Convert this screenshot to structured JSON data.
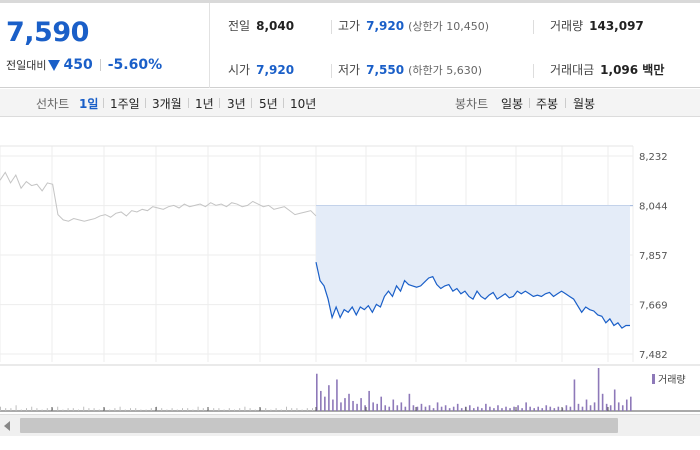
{
  "summary": {
    "price": "7,590",
    "diff_label": "전일대비",
    "diff_value": "450",
    "diff_pct": "-5.60%"
  },
  "stats": {
    "prev_label": "전일",
    "prev_value": "8,040",
    "high_label": "고가",
    "high_value": "7,920",
    "upper_limit": "(상한가 10,450)",
    "volume_label": "거래량",
    "volume_value": "143,097",
    "open_label": "시가",
    "open_value": "7,920",
    "low_label": "저가",
    "low_value": "7,550",
    "lower_limit": "(하한가 5,630)",
    "amount_label": "거래대금",
    "amount_value": "1,096 백만"
  },
  "tabs": {
    "line_label": "선차트",
    "line_items": [
      "1일",
      "1주일",
      "3개월",
      "1년",
      "3년",
      "5년",
      "10년"
    ],
    "active": "1일",
    "candle_label": "봉차트",
    "candle_items": [
      "일봉",
      "주봉",
      "월봉"
    ]
  },
  "colors": {
    "accent": "#1a5fc8",
    "fill": "#e4ecf8",
    "prev_line": "#c4c4c4",
    "volume": "#8e79b9"
  },
  "chart_data": {
    "type": "line",
    "ylim": [
      7482,
      8232
    ],
    "yticks": [
      8232,
      8044,
      7857,
      7669,
      7482
    ],
    "ytick_labels": [
      "8,232",
      "8,044",
      "7,857",
      "7,669",
      "7,482"
    ],
    "baseline": 8044,
    "series": [
      {
        "role": "previous-day",
        "x": [
          0,
          3,
          6,
          9,
          12,
          15,
          18,
          21,
          24,
          27,
          30,
          33,
          36,
          39,
          42,
          45,
          48,
          51,
          54,
          57,
          60,
          63,
          66,
          69,
          72,
          75,
          78,
          81,
          84,
          87,
          90,
          93,
          96,
          99,
          102,
          105,
          108,
          111,
          114,
          117,
          120,
          123,
          126,
          129,
          132,
          135,
          138,
          141,
          144,
          147,
          150,
          153,
          156,
          159,
          162,
          165,
          168,
          171,
          174,
          177,
          180
        ],
        "values": [
          8140,
          8170,
          8130,
          8160,
          8110,
          8135,
          8120,
          8125,
          8100,
          8130,
          8125,
          8010,
          7990,
          7985,
          7995,
          7990,
          7985,
          7990,
          7995,
          8005,
          8010,
          8000,
          8015,
          8020,
          8005,
          8025,
          8020,
          8030,
          8025,
          8040,
          8035,
          8030,
          8040,
          8045,
          8035,
          8050,
          8040,
          8045,
          8050,
          8040,
          8055,
          8045,
          8050,
          8040,
          8055,
          8050,
          8040,
          8045,
          8060,
          8050,
          8040,
          8045,
          8030,
          8035,
          8040,
          8025,
          8010,
          8015,
          8020,
          8025,
          8005
        ]
      },
      {
        "role": "today",
        "x": [
          0,
          2,
          4,
          6,
          8,
          10,
          12,
          14,
          16,
          18,
          20,
          22,
          24,
          26,
          28,
          30,
          32,
          34,
          36,
          38,
          40,
          42,
          44,
          46,
          48,
          50,
          52,
          54,
          56,
          58,
          60,
          62,
          64,
          66,
          68,
          70,
          72,
          74,
          76,
          78,
          80,
          82,
          84,
          86,
          88,
          90,
          92,
          94,
          96,
          98,
          100,
          102,
          104,
          106,
          108,
          110,
          112,
          114,
          116,
          118,
          120,
          122,
          124,
          126,
          128,
          130,
          132,
          134,
          136,
          138,
          140,
          142,
          144,
          146,
          148,
          150,
          152,
          154,
          156
        ],
        "values": [
          7830,
          7760,
          7740,
          7690,
          7620,
          7660,
          7620,
          7650,
          7640,
          7660,
          7630,
          7660,
          7650,
          7665,
          7640,
          7670,
          7660,
          7700,
          7720,
          7700,
          7740,
          7720,
          7760,
          7745,
          7740,
          7735,
          7740,
          7755,
          7770,
          7775,
          7745,
          7730,
          7740,
          7745,
          7720,
          7730,
          7710,
          7720,
          7700,
          7690,
          7720,
          7700,
          7690,
          7705,
          7715,
          7690,
          7700,
          7710,
          7695,
          7700,
          7720,
          7710,
          7720,
          7710,
          7700,
          7705,
          7700,
          7710,
          7715,
          7700,
          7710,
          7720,
          7710,
          7700,
          7690,
          7665,
          7640,
          7660,
          7650,
          7645,
          7630,
          7625,
          7600,
          7615,
          7590,
          7600,
          7580,
          7590,
          7590
        ]
      }
    ],
    "volume_legend": "거래량",
    "volume": {
      "previous": [
        3,
        2,
        2,
        4,
        1,
        2,
        3,
        2,
        1,
        2,
        2,
        3,
        1,
        2,
        2,
        1,
        3,
        2,
        2,
        1,
        2,
        1,
        2,
        3,
        1,
        2,
        2,
        1,
        1,
        2,
        3,
        2,
        1,
        2,
        1,
        2,
        2,
        1,
        3,
        2,
        1,
        2,
        2,
        1,
        2,
        1,
        2,
        3,
        2,
        1,
        2,
        2,
        1,
        2,
        1,
        3,
        2,
        2,
        1,
        2,
        2
      ],
      "today": [
        26,
        14,
        10,
        18,
        8,
        22,
        6,
        9,
        12,
        7,
        5,
        9,
        4,
        14,
        6,
        5,
        10,
        4,
        3,
        8,
        4,
        6,
        3,
        12,
        4,
        3,
        5,
        3,
        4,
        2,
        6,
        3,
        4,
        2,
        3,
        5,
        2,
        3,
        4,
        2,
        3,
        2,
        5,
        3,
        2,
        4,
        2,
        3,
        2,
        3,
        4,
        2,
        6,
        3,
        2,
        3,
        2,
        4,
        3,
        2,
        3,
        2,
        4,
        3,
        22,
        5,
        3,
        8,
        4,
        6,
        30,
        12,
        5,
        4,
        15,
        6,
        4,
        8,
        10
      ]
    }
  }
}
